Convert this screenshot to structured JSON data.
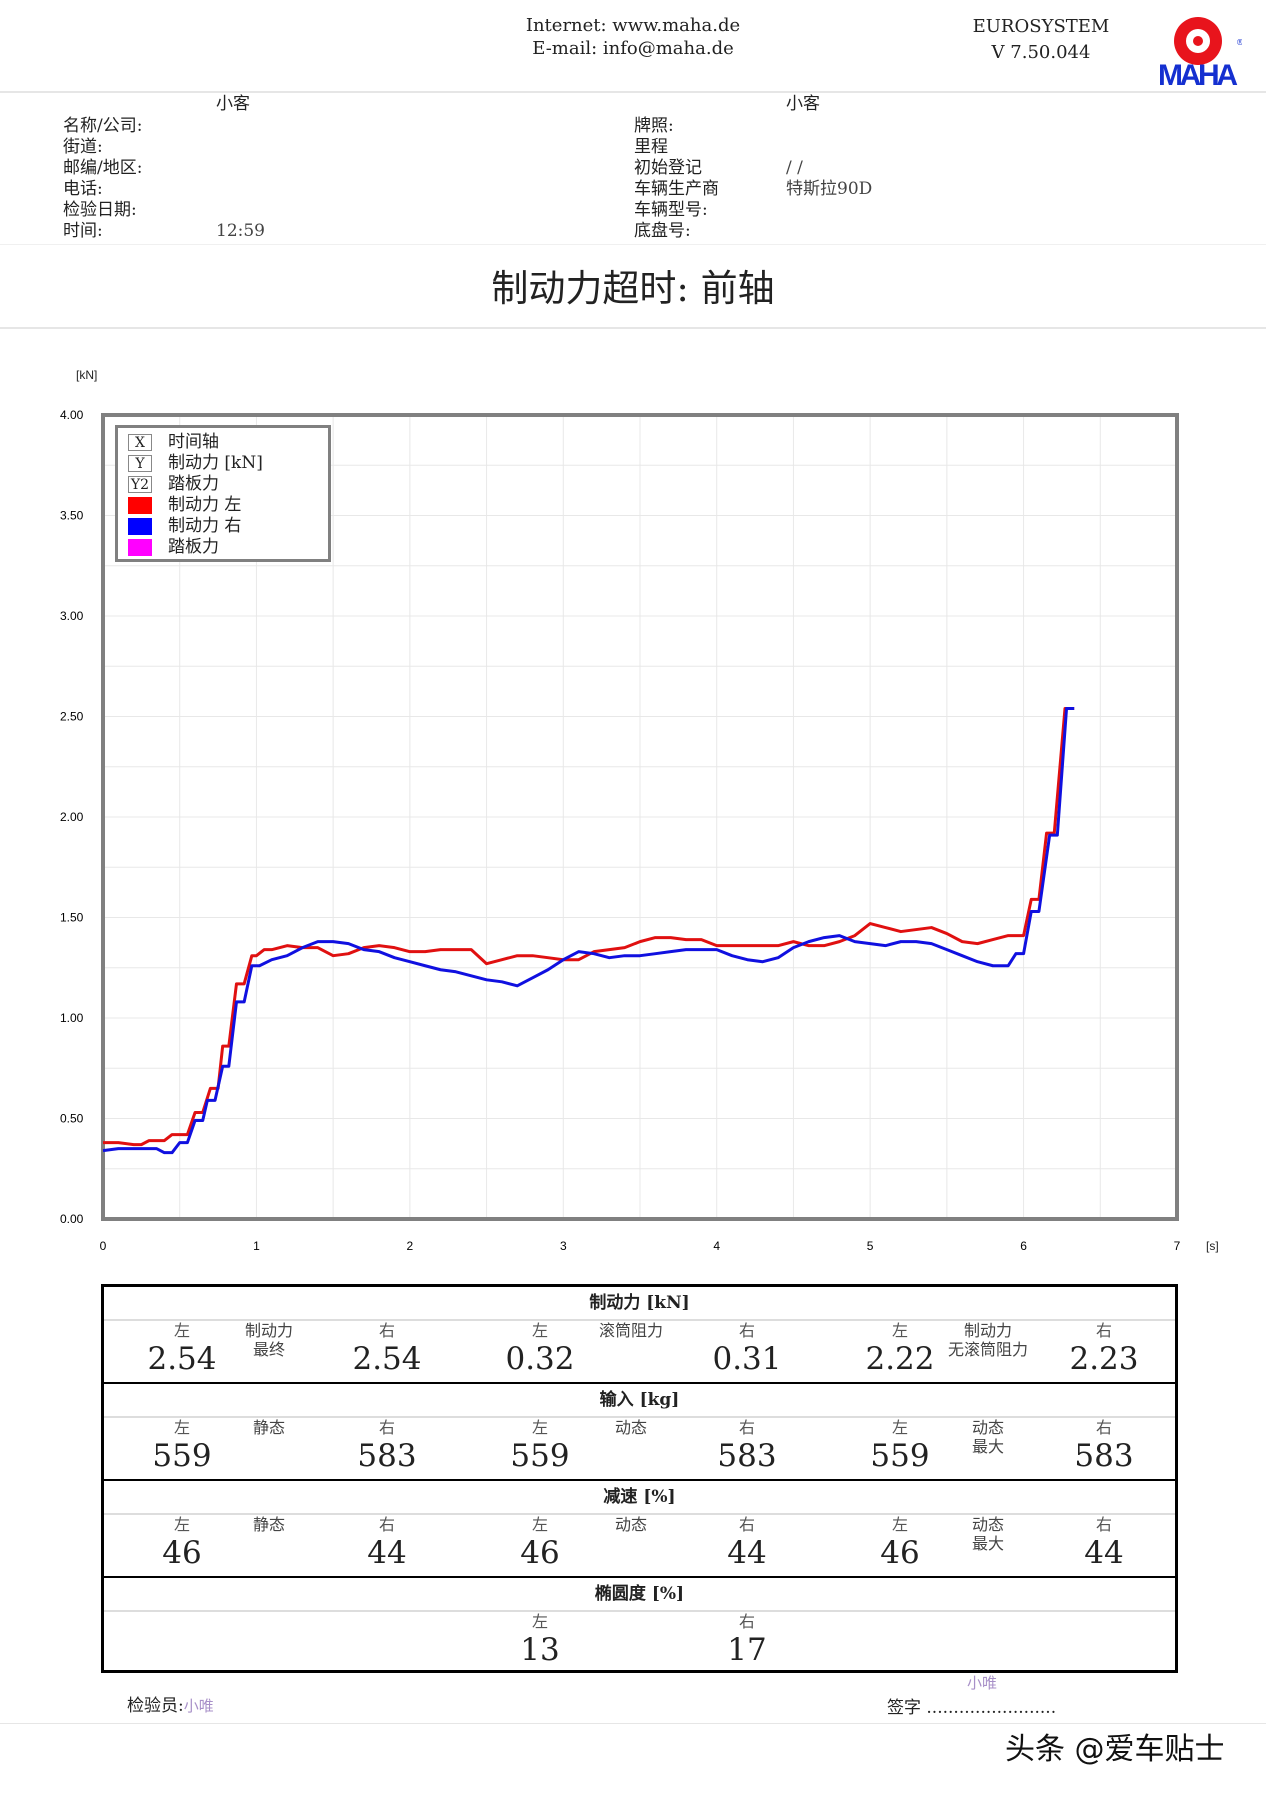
{
  "header": {
    "internet": "Internet: www.maha.de",
    "email": "E-mail: info@maha.de",
    "system": "EUROSYSTEM",
    "version": "V 7.50.044",
    "logo_text": "MAHA",
    "logo_ring": "Maschinenbau Haldenwang"
  },
  "customer": {
    "category": "小客",
    "fields": [
      {
        "label": "名称/公司:",
        "value": ""
      },
      {
        "label": "街道:",
        "value": ""
      },
      {
        "label": "邮编/地区:",
        "value": ""
      },
      {
        "label": "电话:",
        "value": ""
      },
      {
        "label": "检验日期:",
        "value": ""
      },
      {
        "label": "时间:",
        "value": "12:59"
      }
    ]
  },
  "vehicle": {
    "category": "小客",
    "fields": [
      {
        "label": "牌照:",
        "value": ""
      },
      {
        "label": "里程",
        "value": ""
      },
      {
        "label": "初始登记",
        "value": "/ /"
      },
      {
        "label": "车辆生产商",
        "value": "特斯拉90D"
      },
      {
        "label": "车辆型号:",
        "value": ""
      },
      {
        "label": "底盘号:",
        "value": ""
      }
    ]
  },
  "title": "制动力超时: 前轴",
  "chart_data": {
    "type": "line",
    "ylabel": "[kN]",
    "xlabel": "[s]",
    "xlim": [
      0,
      7
    ],
    "ylim": [
      0,
      4
    ],
    "xticks": [
      "0",
      "1",
      "2",
      "3",
      "4",
      "5",
      "6",
      "7"
    ],
    "yticks": [
      "0.00",
      "0.50",
      "1.00",
      "1.50",
      "2.00",
      "2.50",
      "3.00",
      "3.50",
      "4.00"
    ],
    "grid": true,
    "legend_placement": "top-left",
    "legend": [
      {
        "key": "X",
        "label": "时间轴"
      },
      {
        "key": "Y",
        "label": "制动力 [kN]"
      },
      {
        "key": "Y2",
        "label": "踏板力"
      },
      {
        "color": "#ff0000",
        "label": "制动力 左"
      },
      {
        "color": "#0000ff",
        "label": "制动力 右"
      },
      {
        "color": "#ff00ff",
        "label": "踏板力"
      }
    ],
    "series": [
      {
        "name": "制动力 左",
        "color": "#e01010",
        "x": [
          0,
          0.1,
          0.2,
          0.25,
          0.3,
          0.4,
          0.45,
          0.55,
          0.6,
          0.65,
          0.7,
          0.75,
          0.78,
          0.82,
          0.87,
          0.92,
          0.97,
          1.0,
          1.05,
          1.1,
          1.2,
          1.3,
          1.4,
          1.5,
          1.6,
          1.7,
          1.8,
          1.9,
          2.0,
          2.1,
          2.2,
          2.3,
          2.4,
          2.5,
          2.6,
          2.7,
          2.8,
          2.9,
          3.0,
          3.1,
          3.2,
          3.3,
          3.4,
          3.5,
          3.6,
          3.7,
          3.8,
          3.9,
          4.0,
          4.1,
          4.2,
          4.3,
          4.4,
          4.5,
          4.6,
          4.7,
          4.8,
          4.9,
          5.0,
          5.1,
          5.2,
          5.3,
          5.4,
          5.5,
          5.6,
          5.7,
          5.8,
          5.9,
          6.0,
          6.05,
          6.1,
          6.15,
          6.2,
          6.27,
          6.33
        ],
        "y": [
          0.38,
          0.38,
          0.37,
          0.37,
          0.39,
          0.39,
          0.42,
          0.42,
          0.53,
          0.53,
          0.65,
          0.65,
          0.86,
          0.86,
          1.17,
          1.17,
          1.31,
          1.31,
          1.34,
          1.34,
          1.36,
          1.35,
          1.35,
          1.31,
          1.32,
          1.35,
          1.36,
          1.35,
          1.33,
          1.33,
          1.34,
          1.34,
          1.34,
          1.27,
          1.29,
          1.31,
          1.31,
          1.3,
          1.29,
          1.29,
          1.33,
          1.34,
          1.35,
          1.38,
          1.4,
          1.4,
          1.39,
          1.39,
          1.36,
          1.36,
          1.36,
          1.36,
          1.36,
          1.38,
          1.36,
          1.36,
          1.38,
          1.41,
          1.47,
          1.45,
          1.43,
          1.44,
          1.45,
          1.42,
          1.38,
          1.37,
          1.39,
          1.41,
          1.41,
          1.59,
          1.59,
          1.92,
          1.92,
          2.54,
          2.54
        ]
      },
      {
        "name": "制动力 右",
        "color": "#1010e0",
        "x": [
          0,
          0.1,
          0.2,
          0.3,
          0.35,
          0.4,
          0.45,
          0.5,
          0.55,
          0.6,
          0.65,
          0.68,
          0.73,
          0.78,
          0.82,
          0.87,
          0.92,
          0.97,
          1.02,
          1.1,
          1.2,
          1.3,
          1.4,
          1.5,
          1.6,
          1.7,
          1.8,
          1.9,
          2.0,
          2.1,
          2.2,
          2.3,
          2.4,
          2.5,
          2.6,
          2.7,
          2.8,
          2.9,
          3.0,
          3.1,
          3.2,
          3.3,
          3.4,
          3.5,
          3.6,
          3.7,
          3.8,
          3.9,
          4.0,
          4.1,
          4.2,
          4.3,
          4.4,
          4.5,
          4.6,
          4.7,
          4.8,
          4.9,
          5.0,
          5.1,
          5.2,
          5.3,
          5.4,
          5.5,
          5.6,
          5.7,
          5.8,
          5.9,
          5.95,
          6.0,
          6.05,
          6.1,
          6.17,
          6.22,
          6.28,
          6.33
        ],
        "y": [
          0.34,
          0.35,
          0.35,
          0.35,
          0.35,
          0.33,
          0.33,
          0.38,
          0.38,
          0.49,
          0.49,
          0.59,
          0.59,
          0.76,
          0.76,
          1.08,
          1.08,
          1.26,
          1.26,
          1.29,
          1.31,
          1.35,
          1.38,
          1.38,
          1.37,
          1.34,
          1.33,
          1.3,
          1.28,
          1.26,
          1.24,
          1.23,
          1.21,
          1.19,
          1.18,
          1.16,
          1.2,
          1.24,
          1.29,
          1.33,
          1.32,
          1.3,
          1.31,
          1.31,
          1.32,
          1.33,
          1.34,
          1.34,
          1.34,
          1.31,
          1.29,
          1.28,
          1.3,
          1.35,
          1.38,
          1.4,
          1.41,
          1.38,
          1.37,
          1.36,
          1.38,
          1.38,
          1.37,
          1.34,
          1.31,
          1.28,
          1.26,
          1.26,
          1.32,
          1.32,
          1.53,
          1.53,
          1.91,
          1.91,
          2.54,
          2.54
        ]
      }
    ]
  },
  "results": {
    "sections": [
      {
        "title": "制动力 [kN]",
        "groups": [
          {
            "left_label": "左",
            "right_label": "右",
            "caption": [
              "制动力",
              "最终"
            ],
            "left": "2.54",
            "right": "2.54"
          },
          {
            "left_label": "左",
            "right_label": "右",
            "caption": [
              "滚筒阻力"
            ],
            "left": "0.32",
            "right": "0.31"
          },
          {
            "left_label": "左",
            "right_label": "右",
            "caption": [
              "制动力",
              "无滚筒阻力"
            ],
            "left": "2.22",
            "right": "2.23"
          }
        ]
      },
      {
        "title": "输入 [kg]",
        "groups": [
          {
            "left_label": "左",
            "right_label": "右",
            "caption": [
              "静态"
            ],
            "left": "559",
            "right": "583"
          },
          {
            "left_label": "左",
            "right_label": "右",
            "caption": [
              "动态"
            ],
            "left": "559",
            "right": "583"
          },
          {
            "left_label": "左",
            "right_label": "右",
            "caption": [
              "动态",
              "最大"
            ],
            "left": "559",
            "right": "583"
          }
        ]
      },
      {
        "title": "减速 [%]",
        "groups": [
          {
            "left_label": "左",
            "right_label": "右",
            "caption": [
              "静态"
            ],
            "left": "46",
            "right": "44"
          },
          {
            "left_label": "左",
            "right_label": "右",
            "caption": [
              "动态"
            ],
            "left": "46",
            "right": "44"
          },
          {
            "left_label": "左",
            "right_label": "右",
            "caption": [
              "动态",
              "最大"
            ],
            "left": "46",
            "right": "44"
          }
        ]
      },
      {
        "title": "椭圆度 [%]",
        "groups": [
          {
            "left_label": "左",
            "right_label": "右",
            "caption": [],
            "left": "13",
            "right": "17",
            "center": true
          }
        ]
      }
    ]
  },
  "footer": {
    "inspector_label": "检验员:",
    "inspector": "小唯",
    "signature_label": "签字",
    "signature_dots": "........................",
    "signature": "小唯",
    "watermark": "头条 @爱车贴士"
  },
  "colors": {
    "left": "#e01010",
    "right": "#1010e0",
    "pedal": "#ff00ff",
    "frame": "#808080",
    "signature": "#a890c8"
  }
}
